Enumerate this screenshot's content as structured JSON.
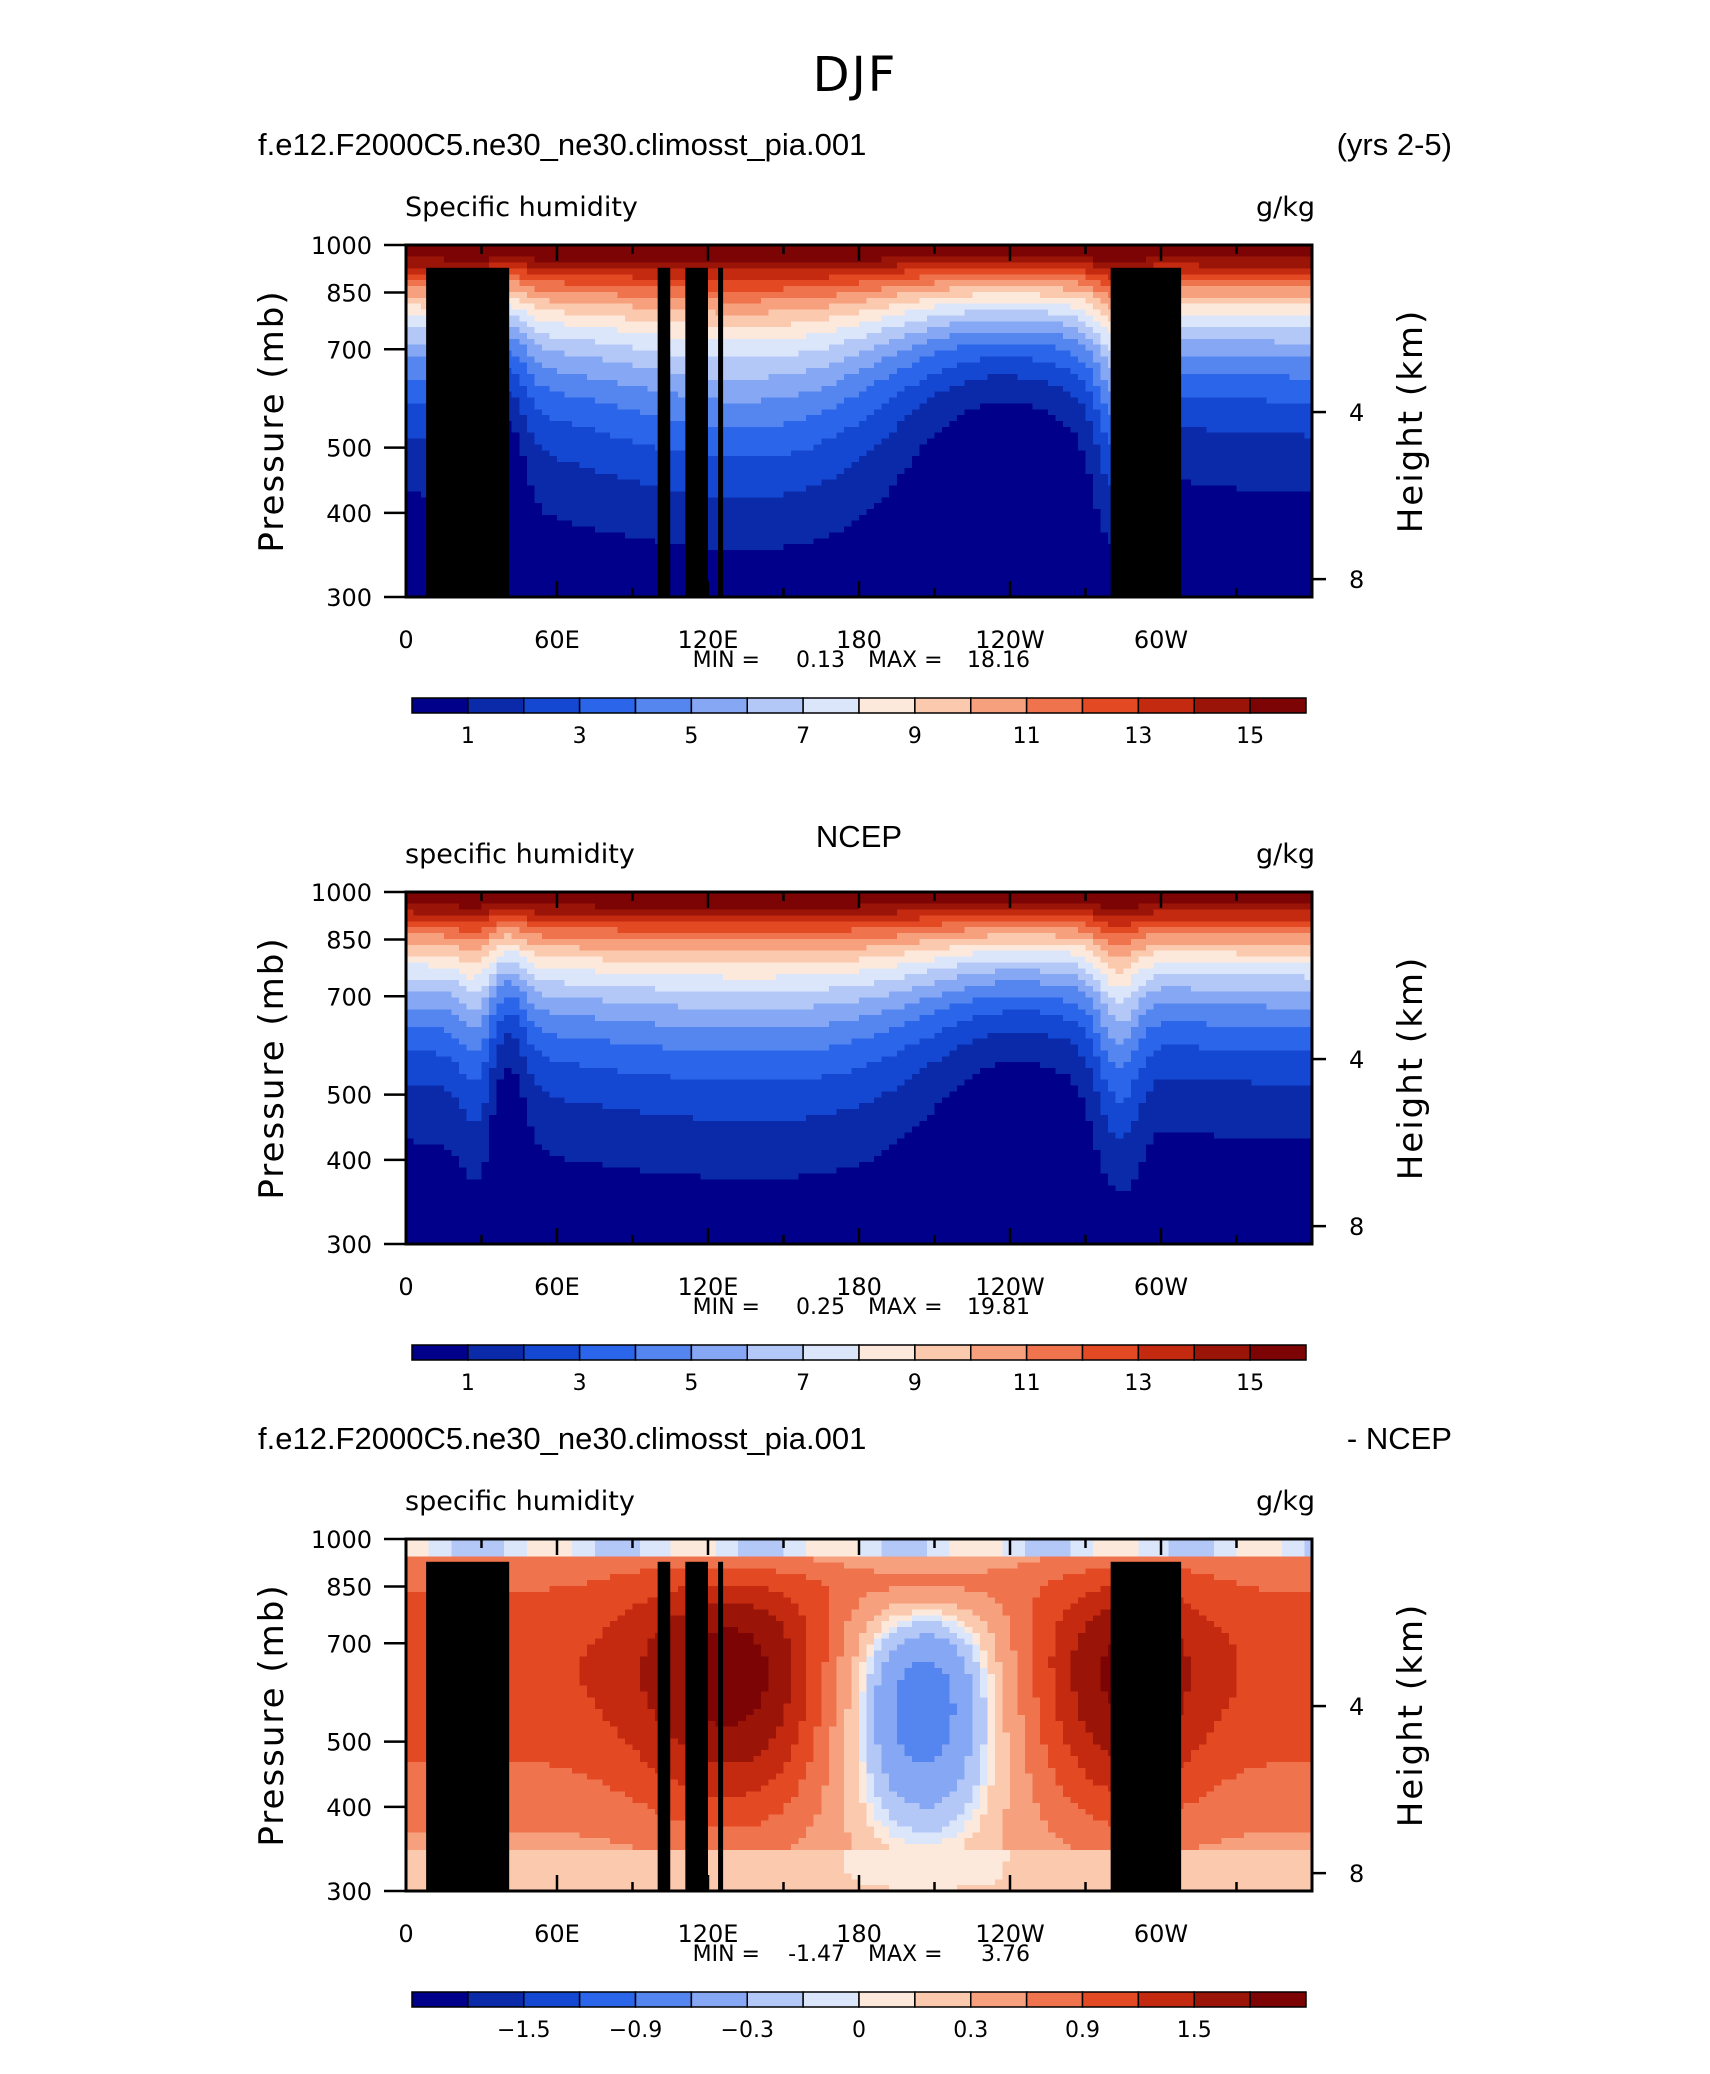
{
  "page_title": "DJF",
  "chart_data": [
    {
      "type": "heatmap",
      "header_left": "f.e12.F2000C5.ne30_ne30.climosst_pia.001",
      "header_right": "(yrs 2-5)",
      "variable": "Specific humidity",
      "units": "g/kg",
      "ylabel": "Pressure (mb)",
      "ylabel_right": "Height (km)",
      "xtick_labels": [
        "0",
        "60E",
        "120E",
        "180",
        "120W",
        "60W"
      ],
      "ytick_labels": [
        "300",
        "400",
        "500",
        "700",
        "850",
        "1000"
      ],
      "yright_tick_labels": [
        "8",
        "4"
      ],
      "min_label": "MIN =",
      "min_value": "0.13",
      "max_label": "MAX =",
      "max_value": "18.16",
      "colorbar_labels": [
        "1",
        "3",
        "5",
        "7",
        "9",
        "11",
        "13",
        "15"
      ],
      "colorbar_levels": [
        1,
        2,
        3,
        4,
        5,
        6,
        7,
        8,
        9,
        10,
        11,
        12,
        13,
        14,
        15
      ],
      "field_range": [
        0.13,
        18.16
      ],
      "topography_masked": true
    },
    {
      "type": "heatmap",
      "header_center": "NCEP",
      "variable": "specific humidity",
      "units": "g/kg",
      "ylabel": "Pressure (mb)",
      "ylabel_right": "Height (km)",
      "xtick_labels": [
        "0",
        "60E",
        "120E",
        "180",
        "120W",
        "60W"
      ],
      "ytick_labels": [
        "300",
        "400",
        "500",
        "700",
        "850",
        "1000"
      ],
      "yright_tick_labels": [
        "8",
        "4"
      ],
      "min_label": "MIN =",
      "min_value": "0.25",
      "max_label": "MAX =",
      "max_value": "19.81",
      "colorbar_labels": [
        "1",
        "3",
        "5",
        "7",
        "9",
        "11",
        "13",
        "15"
      ],
      "colorbar_levels": [
        1,
        2,
        3,
        4,
        5,
        6,
        7,
        8,
        9,
        10,
        11,
        12,
        13,
        14,
        15
      ],
      "field_range": [
        0.25,
        19.81
      ],
      "topography_masked": false
    },
    {
      "type": "heatmap",
      "header_left": "f.e12.F2000C5.ne30_ne30.climosst_pia.001",
      "header_right": "- NCEP",
      "variable": "specific humidity",
      "units": "g/kg",
      "ylabel": "Pressure (mb)",
      "ylabel_right": "Height (km)",
      "xtick_labels": [
        "0",
        "60E",
        "120E",
        "180",
        "120W",
        "60W"
      ],
      "ytick_labels": [
        "300",
        "400",
        "500",
        "700",
        "850",
        "1000"
      ],
      "yright_tick_labels": [
        "8",
        "4"
      ],
      "min_label": "MIN =",
      "min_value": "-1.47",
      "max_label": "MAX =",
      "max_value": "3.76",
      "colorbar_labels": [
        "−1.5",
        "−0.9",
        "−0.3",
        "0",
        "0.3",
        "0.9",
        "1.5"
      ],
      "colorbar_levels": [
        -1.8,
        -1.5,
        -1.2,
        -0.9,
        -0.6,
        -0.3,
        -0.1,
        0,
        0.1,
        0.3,
        0.6,
        0.9,
        1.2,
        1.5,
        1.8
      ],
      "field_range": [
        -1.47,
        3.76
      ],
      "topography_masked": true
    }
  ],
  "colors": {
    "palette": [
      "#00008b",
      "#0a2aaa",
      "#1448d2",
      "#2b66ea",
      "#5586f0",
      "#86a8f4",
      "#b4c8f8",
      "#dce6fb",
      "#fde9dc",
      "#fbc9ae",
      "#f7a07e",
      "#ef744e",
      "#e34a24",
      "#c42a10",
      "#9a1408",
      "#7d0404"
    ],
    "topography": "#000000",
    "axis": "#000000"
  }
}
